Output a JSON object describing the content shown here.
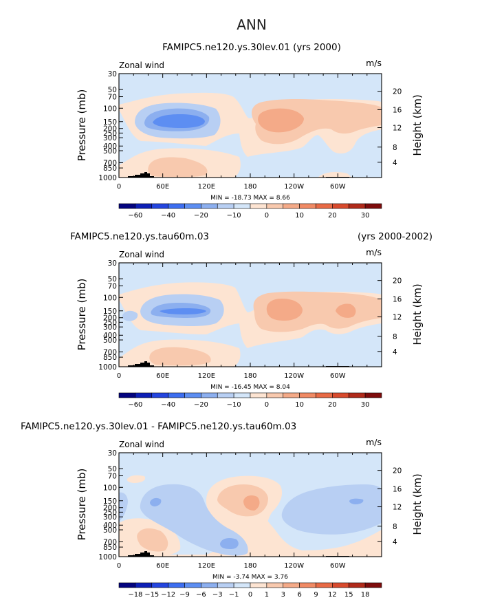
{
  "page_title": "ANN",
  "colors": {
    "neg": [
      "#04047f",
      "#0d1fb6",
      "#2445df",
      "#3d6ef0",
      "#5d8ef2",
      "#8cafef",
      "#b8cff3",
      "#d4e6f9"
    ],
    "pos": [
      "#fde4d2",
      "#f8c9ae",
      "#f4aa88",
      "#f08a64",
      "#e86a45",
      "#d84a2d",
      "#b02a1a",
      "#7e0c0c"
    ],
    "background": "#d4e6f9",
    "terrain": "#000000"
  },
  "chart_data": [
    {
      "type": "contour",
      "title_left": "FAMIPC5.ne120.ys.30lev.01 (yrs 2000)",
      "title_right": "",
      "variable": "Zonal wind",
      "units": "m/s",
      "ylabel": "Pressure (mb)",
      "ylabel_right": "Height (km)",
      "x_ticks": [
        "0",
        "60E",
        "120E",
        "180",
        "120W",
        "60W"
      ],
      "y_ticks": [
        "30",
        "50",
        "70",
        "100",
        "150",
        "200",
        "250",
        "300",
        "400",
        "500",
        "700",
        "850",
        "1000"
      ],
      "height_ticks": [
        "20",
        "16",
        "12",
        "8",
        "4"
      ],
      "min_max": "MIN = -18.73   MAX =   8.66",
      "min": -18.73,
      "max": 8.66,
      "colorbar_labels": [
        "-60",
        "-40",
        "-20",
        "-10",
        "0",
        "10",
        "20",
        "30"
      ]
    },
    {
      "type": "contour",
      "title_left": "FAMIPC5.ne120.ys.tau60m.03",
      "title_right": "(yrs 2000-2002)",
      "variable": "Zonal wind",
      "units": "m/s",
      "ylabel": "Pressure (mb)",
      "ylabel_right": "Height (km)",
      "x_ticks": [
        "0",
        "60E",
        "120E",
        "180",
        "120W",
        "60W"
      ],
      "y_ticks": [
        "30",
        "50",
        "70",
        "100",
        "150",
        "200",
        "250",
        "300",
        "400",
        "500",
        "700",
        "850",
        "1000"
      ],
      "height_ticks": [
        "20",
        "16",
        "12",
        "8",
        "4"
      ],
      "min_max": "MIN = -16.45   MAX =   8.04",
      "min": -16.45,
      "max": 8.04,
      "colorbar_labels": [
        "-60",
        "-40",
        "-20",
        "-10",
        "0",
        "10",
        "20",
        "30"
      ]
    },
    {
      "type": "contour",
      "title_left": "FAMIPC5.ne120.ys.30lev.01 - FAMIPC5.ne120.ys.tau60m.03",
      "title_right": "",
      "variable": "Zonal wind",
      "units": "m/s",
      "ylabel": "Pressure (mb)",
      "ylabel_right": "Height (km)",
      "x_ticks": [
        "0",
        "60E",
        "120E",
        "180",
        "120W",
        "60W"
      ],
      "y_ticks": [
        "30",
        "50",
        "70",
        "100",
        "150",
        "200",
        "250",
        "300",
        "400",
        "500",
        "700",
        "850",
        "1000"
      ],
      "height_ticks": [
        "20",
        "16",
        "12",
        "8",
        "4"
      ],
      "min_max": "MIN =   -3.74   MAX =   3.76",
      "min": -3.74,
      "max": 3.76,
      "colorbar_labels": [
        "-18",
        "-15",
        "-12",
        "-9",
        "-6",
        "-3",
        "-1",
        "0",
        "1",
        "3",
        "6",
        "9",
        "12",
        "15",
        "18"
      ]
    }
  ]
}
